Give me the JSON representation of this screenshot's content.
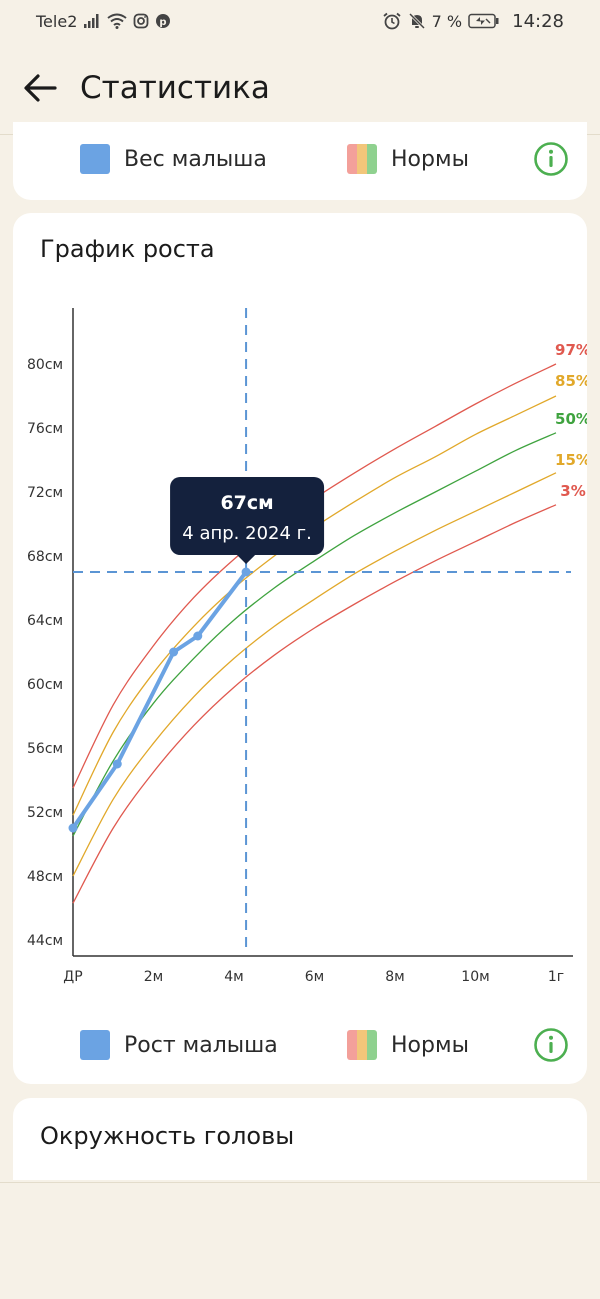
{
  "status_bar": {
    "carrier": "Tele2",
    "battery": "7 %",
    "time": "14:28"
  },
  "app_bar": {
    "title": "Статистика",
    "back_icon": "arrow-left-icon"
  },
  "weight_card": {
    "legend_baby": "Вес малыша",
    "legend_norms": "Нормы"
  },
  "growth_card": {
    "title": "График роста",
    "legend_baby": "Рост малыша",
    "legend_norms": "Нормы",
    "tooltip": {
      "value": "67см",
      "date": "4 апр. 2024 г."
    }
  },
  "head_card": {
    "title": "Окружность головы"
  },
  "colors": {
    "baby_line": "#6BA3E3",
    "p97": "#E0594F",
    "p85": "#E1A82A",
    "p50": "#3FA33F",
    "p15": "#E1A82A",
    "p3": "#E0594F",
    "guide": "#5B95D4",
    "tooltip_bg": "#14213D",
    "info_icon": "#4CAF50"
  },
  "chart_data": {
    "type": "line",
    "title": "График роста",
    "xlabel": "",
    "ylabel": "",
    "x_ticks": [
      "ДР",
      "2м",
      "4м",
      "6м",
      "8м",
      "10м",
      "1г"
    ],
    "y_ticks": [
      "44см",
      "48см",
      "52см",
      "56см",
      "60см",
      "64см",
      "68см",
      "72см",
      "76см",
      "80см"
    ],
    "xlim_months": [
      0,
      12
    ],
    "ylim_cm": [
      43,
      84
    ],
    "grid": false,
    "selected_point": {
      "x_month": 4.3,
      "y_cm": 67,
      "label": "67см",
      "date": "4 апр. 2024 г."
    },
    "series": [
      {
        "name": "Рост малыша",
        "color": "#6BA3E3",
        "x": [
          0,
          1.1,
          2.5,
          3.1,
          4.3
        ],
        "y": [
          51,
          55,
          62,
          63,
          67
        ]
      },
      {
        "name": "97%",
        "color": "#E0594F",
        "x": [
          0,
          1,
          2,
          3,
          4,
          5,
          6,
          7,
          8,
          9,
          10,
          11,
          12
        ],
        "y": [
          53.5,
          58.7,
          62.4,
          65.4,
          67.8,
          69.8,
          71.6,
          73.2,
          74.7,
          76.1,
          77.5,
          78.8,
          80.0
        ]
      },
      {
        "name": "85%",
        "color": "#E1A82A",
        "x": [
          0,
          1,
          2,
          3,
          4,
          5,
          6,
          7,
          8,
          9,
          10,
          11,
          12
        ],
        "y": [
          51.8,
          57.0,
          60.7,
          63.6,
          66.0,
          68.0,
          69.8,
          71.4,
          72.9,
          74.2,
          75.6,
          76.8,
          78.0
        ]
      },
      {
        "name": "50%",
        "color": "#3FA33F",
        "x": [
          0,
          1,
          2,
          3,
          4,
          5,
          6,
          7,
          8,
          9,
          10,
          11,
          12
        ],
        "y": [
          50.5,
          55.2,
          58.8,
          61.6,
          64.0,
          66.0,
          67.7,
          69.3,
          70.7,
          72.0,
          73.3,
          74.6,
          75.7
        ]
      },
      {
        "name": "15%",
        "color": "#E1A82A",
        "x": [
          0,
          1,
          2,
          3,
          4,
          5,
          6,
          7,
          8,
          9,
          10,
          11,
          12
        ],
        "y": [
          48.0,
          52.8,
          56.3,
          59.2,
          61.6,
          63.6,
          65.3,
          66.9,
          68.3,
          69.6,
          70.8,
          72.0,
          73.2
        ]
      },
      {
        "name": "3%",
        "color": "#E0594F",
        "x": [
          0,
          1,
          2,
          3,
          4,
          5,
          6,
          7,
          8,
          9,
          10,
          11,
          12
        ],
        "y": [
          46.3,
          51.0,
          54.5,
          57.4,
          59.8,
          61.8,
          63.5,
          65.0,
          66.4,
          67.7,
          68.9,
          70.1,
          71.2
        ]
      }
    ]
  }
}
